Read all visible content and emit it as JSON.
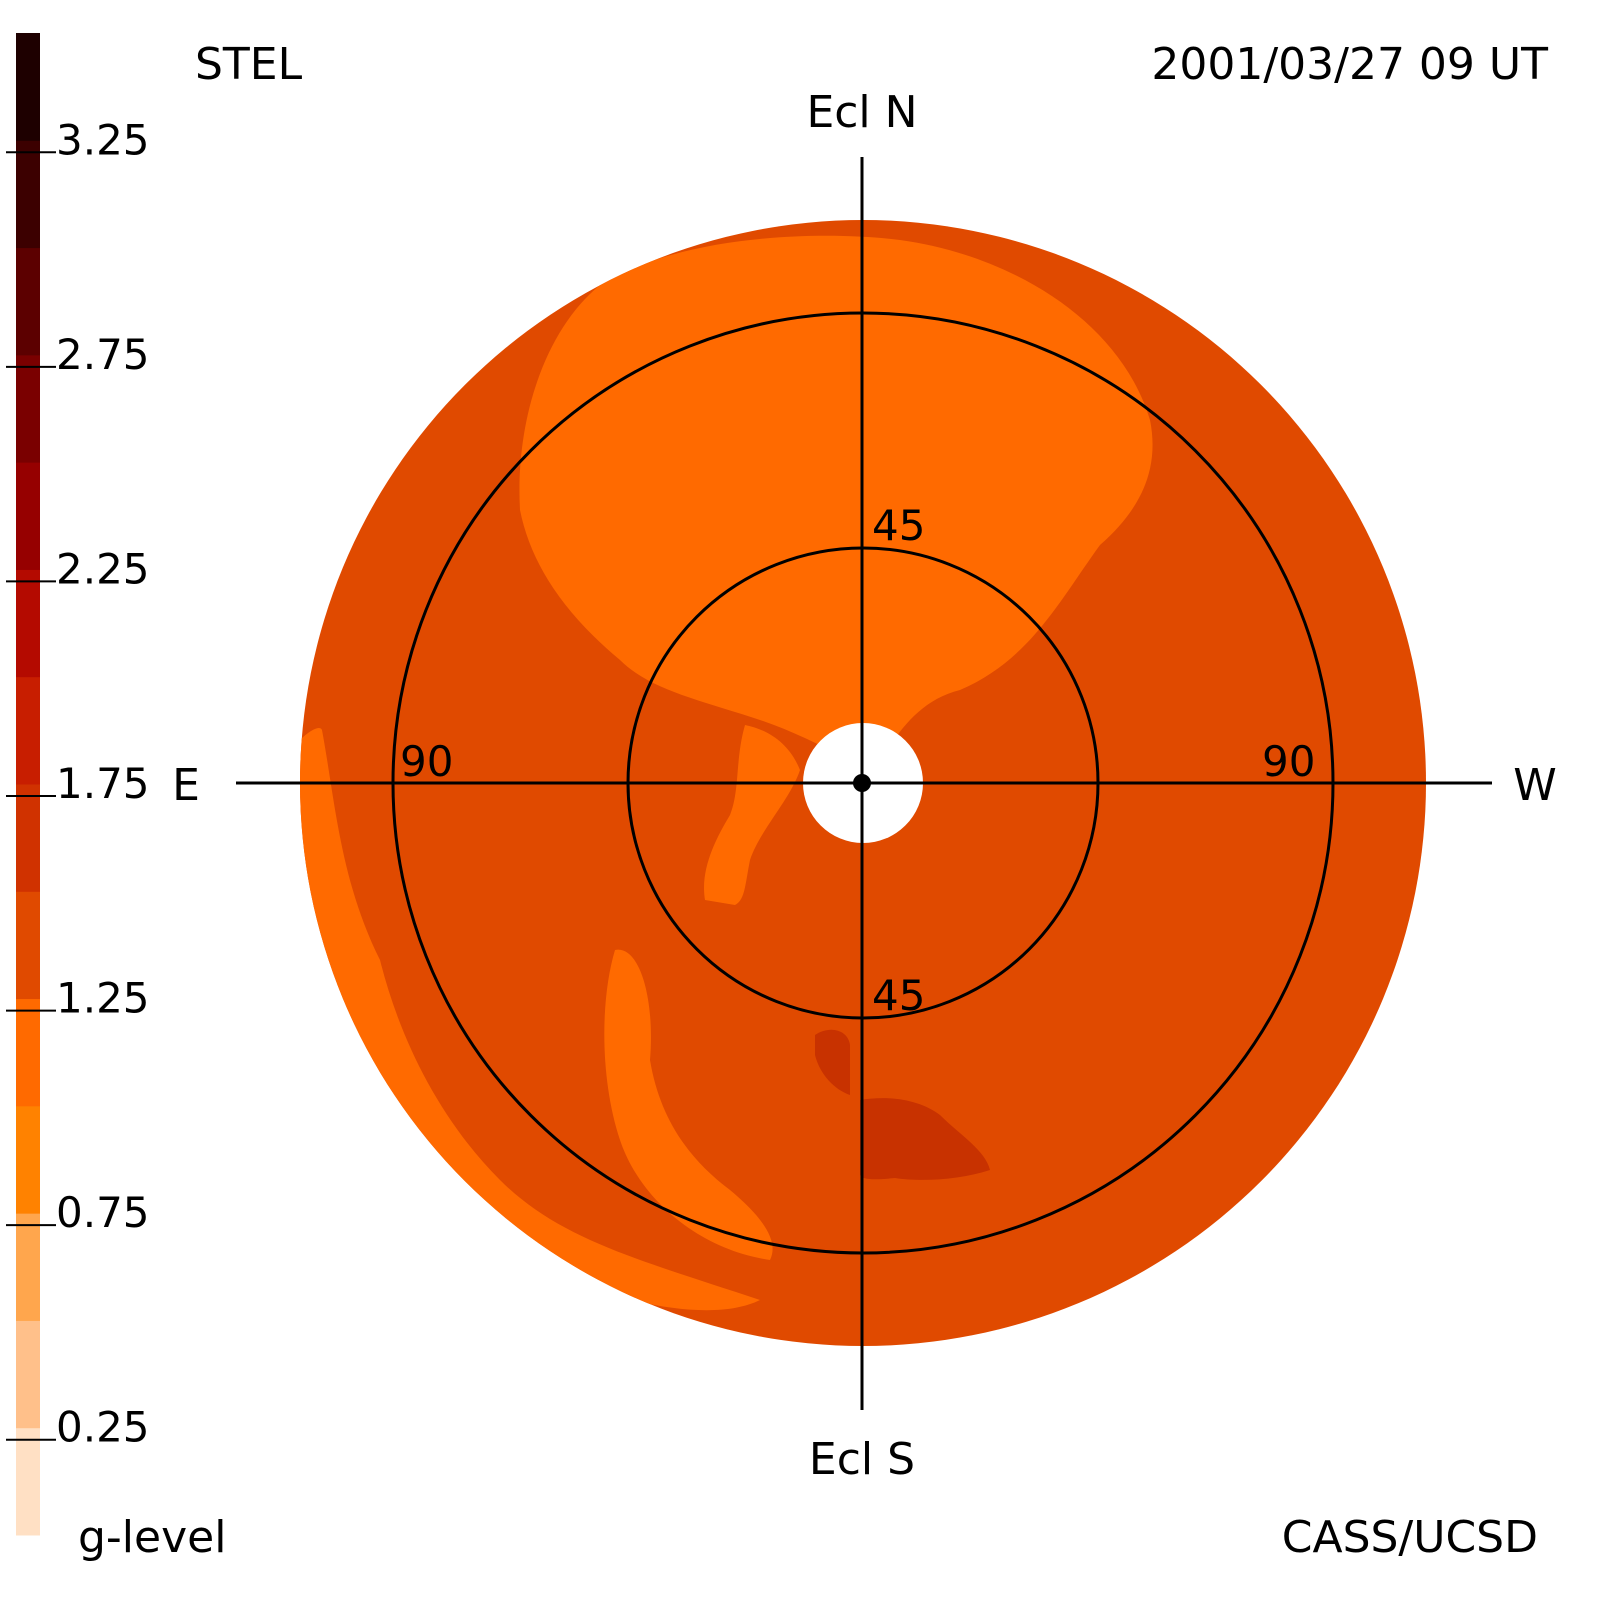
{
  "header": {
    "instrument": "STEL",
    "timestamp": "2001/03/27 09 UT",
    "credit": "CASS/UCSD"
  },
  "directions": {
    "north": "Ecl N",
    "south": "Ecl S",
    "east": "E",
    "west": "W"
  },
  "ring_labels": {
    "inner_north": "45",
    "inner_south": "45",
    "outer_east": "90",
    "outer_west": "90"
  },
  "colorbar": {
    "label": "g-level",
    "ticks": [
      "3.25",
      "2.75",
      "2.25",
      "1.75",
      "1.25",
      "0.75",
      "0.25"
    ],
    "tick_values": [
      3.25,
      2.75,
      2.25,
      1.75,
      1.25,
      0.75,
      0.25
    ],
    "range": [
      0,
      3.5
    ],
    "colors": [
      "#ffe0c4",
      "#ffc08a",
      "#ffa64d",
      "#ff8200",
      "#ff6a00",
      "#e04a00",
      "#d03200",
      "#c81e00",
      "#b40a00",
      "#960000",
      "#7a0000",
      "#5c0000",
      "#3c0000",
      "#1e0000"
    ]
  },
  "chart_data": {
    "type": "heatmap",
    "projection": "fisheye sky map centered on the Sun",
    "rings_deg": [
      45,
      90
    ],
    "field_edge_deg": 108,
    "regions": [
      {
        "area": "background field",
        "g_level": 1.1,
        "color": "#e04a00"
      },
      {
        "area": "north lobe",
        "g_level": 0.9,
        "color": "#ff6a00"
      },
      {
        "area": "east limb",
        "g_level": 0.9,
        "color": "#ff6a00"
      },
      {
        "area": "south-southeast patch",
        "g_level": 1.4,
        "color": "#c83200"
      }
    ]
  }
}
